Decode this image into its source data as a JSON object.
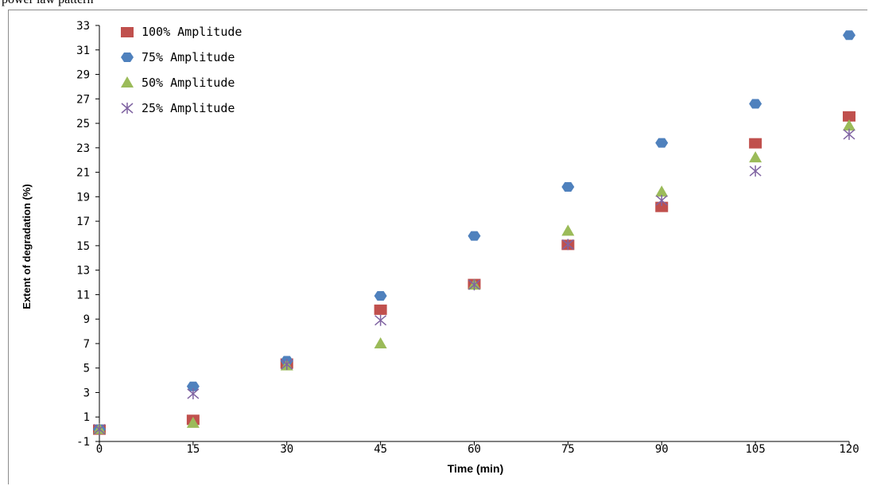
{
  "page": {
    "top_fragment": "power law pattern"
  },
  "chart_data": {
    "type": "scatter",
    "title": "",
    "xlabel": "Time (min)",
    "ylabel": "Extent of degradation (%)",
    "x_ticks": [
      0,
      15,
      30,
      45,
      60,
      75,
      90,
      105,
      120
    ],
    "y_ticks": [
      -1,
      1,
      3,
      5,
      7,
      9,
      11,
      13,
      15,
      17,
      19,
      21,
      23,
      25,
      27,
      29,
      31,
      33
    ],
    "xlim": [
      0,
      120
    ],
    "ylim": [
      -1,
      33
    ],
    "grid": false,
    "legend_position": "top-left",
    "x": [
      0,
      15,
      30,
      45,
      60,
      75,
      90,
      105,
      120
    ],
    "series": [
      {
        "name": "100% Amplitude",
        "marker": "square",
        "color": "#c0504d",
        "values": [
          0,
          0.8,
          5.4,
          9.8,
          11.9,
          15.1,
          18.2,
          23.4,
          25.6
        ]
      },
      {
        "name": "75% Amplitude",
        "marker": "diamond",
        "color": "#4f81bd",
        "values": [
          0,
          3.5,
          5.6,
          10.9,
          15.8,
          19.8,
          23.4,
          26.6,
          32.2
        ]
      },
      {
        "name": "50% Amplitude",
        "marker": "triangle",
        "color": "#9bbb59",
        "values": [
          0,
          0.5,
          5.2,
          7.0,
          11.8,
          16.2,
          19.4,
          22.2,
          24.8
        ]
      },
      {
        "name": "25% Amplitude",
        "marker": "asterisk",
        "color": "#8064a2",
        "values": [
          0,
          2.9,
          5.3,
          8.9,
          11.8,
          15.1,
          18.7,
          21.1,
          24.1
        ]
      }
    ]
  }
}
